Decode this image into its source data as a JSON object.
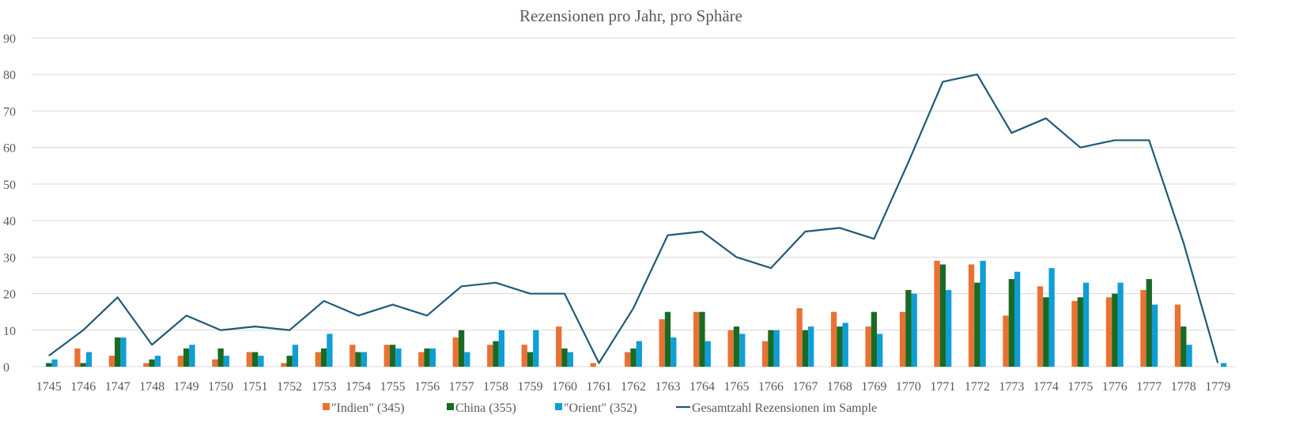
{
  "chart_data": {
    "type": "bar",
    "title": "Rezensionen pro Jahr, pro Sphäre",
    "xlabel": "",
    "ylabel": "",
    "ylim": [
      0,
      90
    ],
    "yticks": [
      0,
      10,
      20,
      30,
      40,
      50,
      60,
      70,
      80,
      90
    ],
    "grid": true,
    "legend_position": "bottom",
    "categories": [
      "1745",
      "1746",
      "1747",
      "1748",
      "1749",
      "1750",
      "1751",
      "1752",
      "1753",
      "1754",
      "1755",
      "1756",
      "1757",
      "1758",
      "1759",
      "1760",
      "1761",
      "1762",
      "1763",
      "1764",
      "1765",
      "1766",
      "1767",
      "1768",
      "1769",
      "1770",
      "1771",
      "1772",
      "1773",
      "1774",
      "1775",
      "1776",
      "1777",
      "1778",
      "1779"
    ],
    "series": [
      {
        "name": "\"Indien\" (345)",
        "type": "bar",
        "color": "#E97132",
        "values": [
          0,
          5,
          3,
          1,
          3,
          2,
          4,
          1,
          4,
          6,
          6,
          4,
          8,
          6,
          6,
          11,
          1,
          4,
          13,
          15,
          10,
          7,
          16,
          15,
          11,
          15,
          29,
          28,
          14,
          22,
          18,
          19,
          21,
          17,
          0
        ]
      },
      {
        "name": "China (355)",
        "type": "bar",
        "color": "#196B24",
        "values": [
          1,
          1,
          8,
          2,
          5,
          5,
          4,
          3,
          5,
          4,
          6,
          5,
          10,
          7,
          4,
          5,
          0,
          5,
          15,
          15,
          11,
          10,
          10,
          11,
          15,
          21,
          28,
          23,
          24,
          19,
          19,
          20,
          24,
          11,
          0
        ]
      },
      {
        "name": "\"Orient\" (352)",
        "type": "bar",
        "color": "#0F9ED5",
        "values": [
          2,
          4,
          8,
          3,
          6,
          3,
          3,
          6,
          9,
          4,
          5,
          5,
          4,
          10,
          10,
          4,
          0,
          7,
          8,
          7,
          9,
          10,
          11,
          12,
          9,
          20,
          21,
          29,
          26,
          27,
          23,
          23,
          17,
          6,
          1
        ]
      },
      {
        "name": "Gesamtzahl Rezensionen im Sample",
        "type": "line",
        "color": "#1F5A78",
        "values": [
          3,
          10,
          19,
          6,
          14,
          10,
          11,
          10,
          18,
          14,
          17,
          14,
          22,
          23,
          20,
          20,
          1,
          16,
          36,
          37,
          30,
          27,
          37,
          38,
          35,
          56,
          78,
          80,
          64,
          68,
          60,
          62,
          62,
          34,
          1
        ]
      }
    ]
  }
}
